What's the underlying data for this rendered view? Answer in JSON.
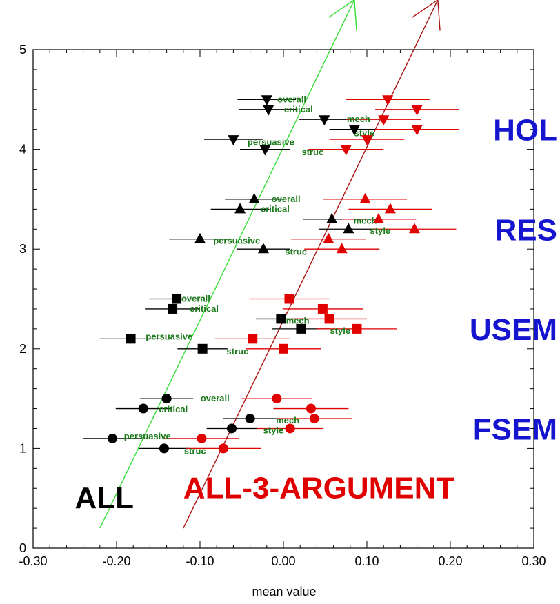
{
  "chart_data": {
    "type": "scatter",
    "xlabel": "mean value",
    "ylabel": "",
    "xlim": [
      -0.3,
      0.3
    ],
    "ylim": [
      0,
      5
    ],
    "x_ticks": [
      "-0.30",
      "-0.20",
      "-0.10",
      "0.00",
      "0.10",
      "0.20",
      "0.30"
    ],
    "y_ticks": [
      "0",
      "1",
      "2",
      "3",
      "4",
      "5"
    ],
    "group_labels": [
      {
        "text": "HOL",
        "y": 4.2
      },
      {
        "text": "RES",
        "y": 3.2
      },
      {
        "text": "USEM",
        "y": 2.2
      },
      {
        "text": "FSEM",
        "y": 1.2
      }
    ],
    "series": [
      {
        "name": "ALL",
        "color": "#000000",
        "points": [
          {
            "group": "HOL",
            "marker": "triangle-down",
            "x": -0.02,
            "y": 4.5,
            "xerr": 0.035
          },
          {
            "group": "HOL",
            "marker": "triangle-down",
            "x": -0.018,
            "y": 4.4,
            "xerr": 0.035
          },
          {
            "group": "HOL",
            "marker": "triangle-down",
            "x": 0.049,
            "y": 4.3,
            "xerr": 0.03
          },
          {
            "group": "HOL",
            "marker": "triangle-down",
            "x": 0.085,
            "y": 4.2,
            "xerr": 0.03
          },
          {
            "group": "HOL",
            "marker": "triangle-down",
            "x": -0.06,
            "y": 4.1,
            "xerr": 0.035
          },
          {
            "group": "HOL",
            "marker": "triangle-down",
            "x": -0.022,
            "y": 4.0,
            "xerr": 0.03
          },
          {
            "group": "RES",
            "marker": "triangle-up",
            "x": -0.035,
            "y": 3.5,
            "xerr": 0.035
          },
          {
            "group": "RES",
            "marker": "triangle-up",
            "x": -0.052,
            "y": 3.4,
            "xerr": 0.035
          },
          {
            "group": "RES",
            "marker": "triangle-up",
            "x": 0.058,
            "y": 3.3,
            "xerr": 0.035
          },
          {
            "group": "RES",
            "marker": "triangle-up",
            "x": 0.078,
            "y": 3.2,
            "xerr": 0.035
          },
          {
            "group": "RES",
            "marker": "triangle-up",
            "x": -0.1,
            "y": 3.1,
            "xerr": 0.037
          },
          {
            "group": "RES",
            "marker": "triangle-up",
            "x": -0.024,
            "y": 3.0,
            "xerr": 0.032
          },
          {
            "group": "USEM",
            "marker": "square",
            "x": -0.128,
            "y": 2.5,
            "xerr": 0.033
          },
          {
            "group": "USEM",
            "marker": "square",
            "x": -0.133,
            "y": 2.4,
            "xerr": 0.033
          },
          {
            "group": "USEM",
            "marker": "square",
            "x": -0.003,
            "y": 2.3,
            "xerr": 0.03
          },
          {
            "group": "USEM",
            "marker": "square",
            "x": 0.021,
            "y": 2.2,
            "xerr": 0.035
          },
          {
            "group": "USEM",
            "marker": "square",
            "x": -0.183,
            "y": 2.1,
            "xerr": 0.037
          },
          {
            "group": "USEM",
            "marker": "square",
            "x": -0.097,
            "y": 2.0,
            "xerr": 0.03
          },
          {
            "group": "FSEM",
            "marker": "circle",
            "x": -0.14,
            "y": 1.5,
            "xerr": 0.032
          },
          {
            "group": "FSEM",
            "marker": "circle",
            "x": -0.168,
            "y": 1.4,
            "xerr": 0.033
          },
          {
            "group": "FSEM",
            "marker": "circle",
            "x": -0.04,
            "y": 1.3,
            "xerr": 0.032
          },
          {
            "group": "FSEM",
            "marker": "circle",
            "x": -0.062,
            "y": 1.2,
            "xerr": 0.03
          },
          {
            "group": "FSEM",
            "marker": "circle",
            "x": -0.205,
            "y": 1.1,
            "xerr": 0.035
          },
          {
            "group": "FSEM",
            "marker": "circle",
            "x": -0.143,
            "y": 1.0,
            "xerr": 0.03
          }
        ]
      },
      {
        "name": "ALL-3-ARGUMENT",
        "color": "#e00000",
        "points": [
          {
            "group": "HOL",
            "marker": "triangle-down",
            "x": 0.125,
            "y": 4.5,
            "xerr": 0.05
          },
          {
            "group": "HOL",
            "marker": "triangle-down",
            "x": 0.16,
            "y": 4.4,
            "xerr": 0.05
          },
          {
            "group": "HOL",
            "marker": "triangle-down",
            "x": 0.12,
            "y": 4.3,
            "xerr": 0.045
          },
          {
            "group": "HOL",
            "marker": "triangle-down",
            "x": 0.16,
            "y": 4.2,
            "xerr": 0.05
          },
          {
            "group": "HOL",
            "marker": "triangle-down",
            "x": 0.1,
            "y": 4.1,
            "xerr": 0.045
          },
          {
            "group": "HOL",
            "marker": "triangle-down",
            "x": 0.075,
            "y": 4.0,
            "xerr": 0.045
          },
          {
            "group": "RES",
            "marker": "triangle-up",
            "x": 0.098,
            "y": 3.5,
            "xerr": 0.05
          },
          {
            "group": "RES",
            "marker": "triangle-up",
            "x": 0.128,
            "y": 3.4,
            "xerr": 0.05
          },
          {
            "group": "RES",
            "marker": "triangle-up",
            "x": 0.114,
            "y": 3.3,
            "xerr": 0.045
          },
          {
            "group": "RES",
            "marker": "triangle-up",
            "x": 0.157,
            "y": 3.2,
            "xerr": 0.05
          },
          {
            "group": "RES",
            "marker": "triangle-up",
            "x": 0.054,
            "y": 3.1,
            "xerr": 0.045
          },
          {
            "group": "RES",
            "marker": "triangle-up",
            "x": 0.07,
            "y": 3.0,
            "xerr": 0.045
          },
          {
            "group": "USEM",
            "marker": "square",
            "x": 0.007,
            "y": 2.5,
            "xerr": 0.048
          },
          {
            "group": "USEM",
            "marker": "square",
            "x": 0.047,
            "y": 2.4,
            "xerr": 0.048
          },
          {
            "group": "USEM",
            "marker": "square",
            "x": 0.055,
            "y": 2.3,
            "xerr": 0.045
          },
          {
            "group": "USEM",
            "marker": "square",
            "x": 0.088,
            "y": 2.2,
            "xerr": 0.048
          },
          {
            "group": "USEM",
            "marker": "square",
            "x": -0.037,
            "y": 2.1,
            "xerr": 0.045
          },
          {
            "group": "USEM",
            "marker": "square",
            "x": 0.0,
            "y": 2.0,
            "xerr": 0.045
          },
          {
            "group": "FSEM",
            "marker": "circle",
            "x": -0.008,
            "y": 1.5,
            "xerr": 0.042
          },
          {
            "group": "FSEM",
            "marker": "circle",
            "x": 0.033,
            "y": 1.4,
            "xerr": 0.045
          },
          {
            "group": "FSEM",
            "marker": "circle",
            "x": 0.037,
            "y": 1.3,
            "xerr": 0.045
          },
          {
            "group": "FSEM",
            "marker": "circle",
            "x": 0.008,
            "y": 1.2,
            "xerr": 0.04
          },
          {
            "group": "FSEM",
            "marker": "circle",
            "x": -0.098,
            "y": 1.1,
            "xerr": 0.045
          },
          {
            "group": "FSEM",
            "marker": "circle",
            "x": -0.072,
            "y": 1.0,
            "xerr": 0.045
          }
        ]
      }
    ],
    "point_labels": [
      {
        "text": "overall",
        "x": 0.01,
        "y": 4.5
      },
      {
        "text": "critical",
        "x": 0.018,
        "y": 4.4
      },
      {
        "text": "mech",
        "x": 0.09,
        "y": 4.3
      },
      {
        "text": "style",
        "x": 0.097,
        "y": 4.16
      },
      {
        "text": "persuasive",
        "x": -0.015,
        "y": 4.07
      },
      {
        "text": "struc",
        "x": 0.035,
        "y": 3.97
      },
      {
        "text": "overall",
        "x": 0.003,
        "y": 3.5
      },
      {
        "text": "critical",
        "x": -0.01,
        "y": 3.4
      },
      {
        "text": "mech",
        "x": 0.098,
        "y": 3.28
      },
      {
        "text": "style",
        "x": 0.116,
        "y": 3.18
      },
      {
        "text": "persuasive",
        "x": -0.056,
        "y": 3.08
      },
      {
        "text": "struc",
        "x": 0.015,
        "y": 2.97
      },
      {
        "text": "overall",
        "x": -0.105,
        "y": 2.5
      },
      {
        "text": "critical",
        "x": -0.095,
        "y": 2.4
      },
      {
        "text": "mech",
        "x": 0.017,
        "y": 2.28
      },
      {
        "text": "style",
        "x": 0.068,
        "y": 2.18
      },
      {
        "text": "persuasive",
        "x": -0.137,
        "y": 2.12
      },
      {
        "text": "struc",
        "x": -0.055,
        "y": 1.97
      },
      {
        "text": "overall",
        "x": -0.082,
        "y": 1.5
      },
      {
        "text": "critical",
        "x": -0.132,
        "y": 1.39
      },
      {
        "text": "mech",
        "x": 0.005,
        "y": 1.28
      },
      {
        "text": "style",
        "x": -0.012,
        "y": 1.18
      },
      {
        "text": "persuasive",
        "x": -0.163,
        "y": 1.12
      },
      {
        "text": "struc",
        "x": -0.106,
        "y": 0.97
      }
    ],
    "trend_lines": [
      {
        "name": "ALL",
        "color": "#33dd33",
        "x": [
          -0.22,
          0.085
        ],
        "y": [
          0.2,
          5.5
        ]
      },
      {
        "name": "ALL-3-ARGUMENT",
        "color": "#aa1111",
        "x": [
          -0.12,
          0.185
        ],
        "y": [
          0.2,
          5.5
        ]
      }
    ],
    "legend": [
      {
        "text": "ALL",
        "color": "#000000",
        "x": -0.25,
        "y": 0.4
      },
      {
        "text": "ALL-3-ARGUMENT",
        "color": "#e00000",
        "x": -0.12,
        "y": 0.5
      }
    ]
  }
}
